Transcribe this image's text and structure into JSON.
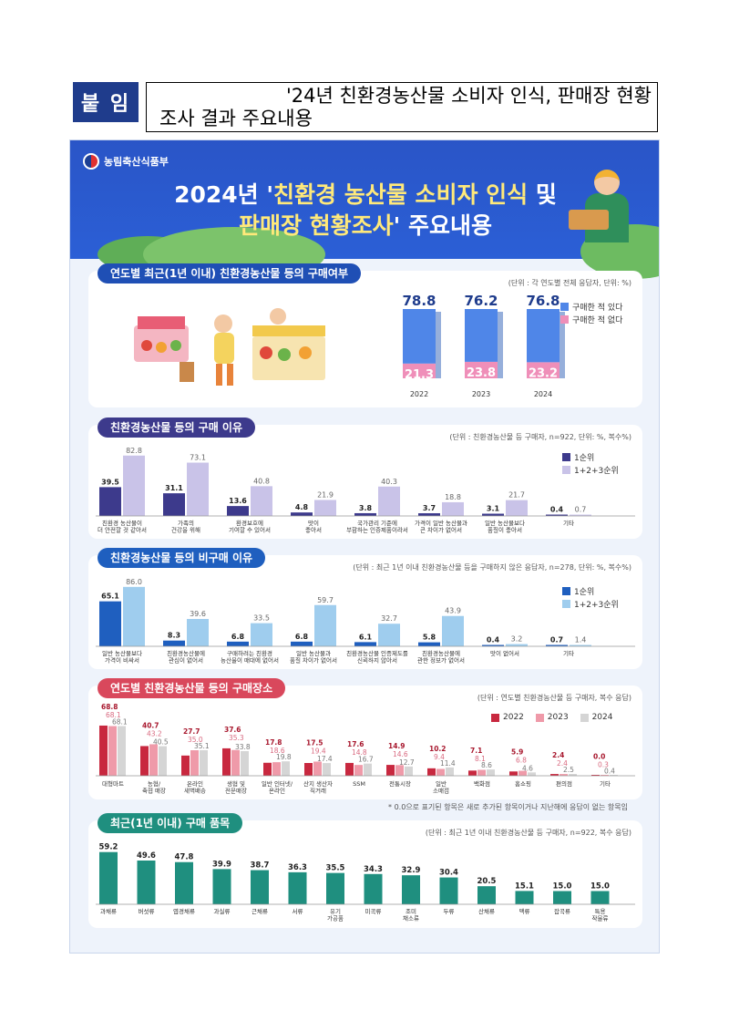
{
  "header": {
    "badge": "붙 임",
    "title_line1": "'24년 친환경농산물 소비자 인식, 판매장 현황",
    "title_line2": "조사 결과 주요내용"
  },
  "infographic": {
    "ministry": "농림축산식품부",
    "title_year": "2024년",
    "title_q_open": " '",
    "title_highlight1": "친환경 농산물 소비자 인식",
    "title_tail1": " 및",
    "title_highlight2": "판매장 현황조사",
    "title_tail2": "' 주요내용",
    "footnote": "* 0.0으로 표기된 항목은 새로 추가된 항목이거나 지난해에 응답이 없는 항목임"
  },
  "colors": {
    "banner_blue": "#2b5fd6",
    "buy_blue": "#4f86e8",
    "notbuy_pink": "#ef8fb9",
    "reason_rank1": "#3d3a8c",
    "reason_rank123": "#c9c3e8",
    "nonbuy_rank1": "#1f5fbf",
    "nonbuy_rank123": "#9fcdee",
    "place_2022": "#c8283f",
    "place_2023": "#ef9aa9",
    "place_2024": "#d5d5d5",
    "items_teal": "#1f8f7f"
  },
  "chart_data": [
    {
      "type": "bar",
      "title": "연도별 최근(1년 이내) 친환경농산물 등의 구매여부",
      "unit": "(단위 : 각 연도별 전체 응답자, 단위: %)",
      "categories": [
        "2022",
        "2023",
        "2024"
      ],
      "series": [
        {
          "name": "구매한 적 있다",
          "values": [
            78.8,
            76.2,
            76.8
          ]
        },
        {
          "name": "구매한 적 없다",
          "values": [
            21.3,
            23.8,
            23.2
          ]
        }
      ]
    },
    {
      "type": "bar",
      "title": "친환경농산물 등의 구매 이유",
      "unit": "(단위 : 친환경농산물 등 구매자, n=922, 단위: %, 복수%)",
      "categories": [
        [
          "친환경 농산물이",
          "더 안전할 것 같아서"
        ],
        [
          "가족의",
          "건강을 위해"
        ],
        [
          "환경보호에",
          "기여할 수 있어서"
        ],
        [
          "맛이",
          "좋아서"
        ],
        [
          "국가관리 기준에",
          "부합하는 인증제품이라서"
        ],
        [
          "가격이 일반 농산물과",
          "큰 차이가 없어서"
        ],
        [
          "일반 농산물보다",
          "품질이 좋아서"
        ],
        [
          "기타"
        ]
      ],
      "series": [
        {
          "name": "1순위",
          "values": [
            39.5,
            31.1,
            13.6,
            4.8,
            3.8,
            3.7,
            3.1,
            0.4
          ]
        },
        {
          "name": "1+2+3순위",
          "values": [
            82.8,
            73.1,
            40.8,
            21.9,
            40.3,
            18.8,
            21.7,
            0.7
          ]
        }
      ],
      "ylim": [
        0,
        90
      ]
    },
    {
      "type": "bar",
      "title": "친환경농산물 등의 비구매 이유",
      "unit": "(단위 : 최근 1년 이내 친환경농산물 등을 구매하지 않은 응답자, n=278, 단위: %, 복수%)",
      "categories": [
        [
          "일반 농산물보다",
          "가격이 비싸서"
        ],
        [
          "친환경농산물에",
          "관심이 없어서"
        ],
        [
          "구매하려는 친환경",
          "농산물이 매대에 없어서"
        ],
        [
          "일반 농산물과",
          "품질 차이가 없어서"
        ],
        [
          "친환경농산물 인증제도를",
          "신뢰하지 않아서"
        ],
        [
          "친환경농산물에",
          "관한 정보가 없어서"
        ],
        [
          "맛이 없어서"
        ],
        [
          "기타"
        ]
      ],
      "series": [
        {
          "name": "1순위",
          "values": [
            65.1,
            8.3,
            6.8,
            6.8,
            6.1,
            5.8,
            0.4,
            0.7
          ]
        },
        {
          "name": "1+2+3순위",
          "values": [
            86.0,
            39.6,
            33.5,
            59.7,
            32.7,
            43.9,
            3.2,
            1.4
          ]
        }
      ],
      "ylim": [
        0,
        95
      ]
    },
    {
      "type": "bar",
      "title": "연도별 친환경농산물 등의 구매장소",
      "unit": "(단위 : 연도별 친환경농산물 등 구매자, 복수 응답)",
      "categories": [
        [
          "대형마트"
        ],
        [
          "농협/",
          "축협 매장"
        ],
        [
          "온라인",
          "새벽배송"
        ],
        [
          "생협 및",
          "전문매장"
        ],
        [
          "일반 인터넷/",
          "온라인"
        ],
        [
          "산지 생산자",
          "직거래"
        ],
        [
          "SSM"
        ],
        [
          "전통시장"
        ],
        [
          "일반",
          "소매점"
        ],
        [
          "백화점"
        ],
        [
          "홈쇼핑"
        ],
        [
          "편의점"
        ],
        [
          "기타"
        ]
      ],
      "series": [
        {
          "name": "2022",
          "values": [
            68.8,
            40.7,
            27.7,
            37.6,
            17.8,
            17.5,
            17.6,
            14.9,
            10.2,
            7.1,
            5.9,
            2.4,
            0.0
          ]
        },
        {
          "name": "2023",
          "values": [
            68.1,
            43.2,
            35.0,
            35.3,
            18.6,
            19.4,
            14.8,
            14.6,
            9.4,
            8.1,
            6.8,
            2.4,
            0.3
          ]
        },
        {
          "name": "2024",
          "values": [
            68.1,
            40.5,
            35.1,
            33.8,
            19.8,
            17.4,
            16.7,
            12.7,
            11.4,
            8.6,
            4.6,
            2.5,
            0.4
          ]
        }
      ],
      "ylim": [
        0,
        75
      ]
    },
    {
      "type": "bar",
      "title": "최근(1년 이내) 구매 품목",
      "unit": "(단위 : 최근 1년 이내 친환경농산물 등 구매자, n=922, 복수 응답)",
      "categories": [
        [
          "과채류"
        ],
        [
          "버섯류"
        ],
        [
          "엽경채류"
        ],
        [
          "과실류"
        ],
        [
          "근채류"
        ],
        [
          "서류"
        ],
        [
          "유기",
          "가공품"
        ],
        [
          "미곡류"
        ],
        [
          "조미",
          "채소류"
        ],
        [
          "두류"
        ],
        [
          "산채류"
        ],
        [
          "맥류"
        ],
        [
          "잡곡류"
        ],
        [
          "특용",
          "작물류"
        ]
      ],
      "series": [
        {
          "values": [
            59.2,
            49.6,
            47.8,
            39.9,
            38.7,
            36.3,
            35.5,
            34.3,
            32.9,
            30.4,
            20.5,
            15.1,
            15.0,
            15.0
          ]
        }
      ],
      "ylim": [
        0,
        62
      ]
    }
  ]
}
